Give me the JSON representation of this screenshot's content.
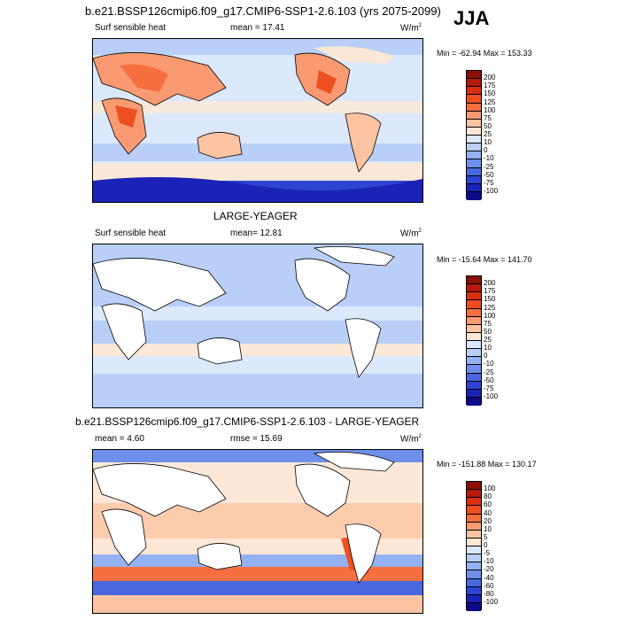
{
  "season": "JJA",
  "units": {
    "base": "W/m",
    "exp": "2"
  },
  "panels": [
    {
      "title": "b.e21.BSSP126cmip6.f09_g17.CMIP6-SSP1-2.6.103 (yrs 2075-2099)",
      "variable": "Surf sensible heat",
      "mean_label": "mean =  17.41",
      "minmax_label": "Min = -62.94 Max = 153.33"
    },
    {
      "title": "LARGE-YEAGER",
      "variable": "Surf sensible heat",
      "mean_label": "mean=  12.81",
      "minmax_label": "Min = -15.64 Max = 141.70"
    },
    {
      "title": "b.e21.BSSP126cmip6.f09_g17.CMIP6-SSP1-2.6.103 - LARGE-YEAGER",
      "mean_label": "mean =   4.60",
      "rmse_label": "rmse =  15.69",
      "minmax_label": "Min = -151.88 Max = 130.17"
    }
  ],
  "chart_data": [
    {
      "type": "heatmap",
      "title": "b.e21.BSSP126cmip6.f09_g17.CMIP6-SSP1-2.6.103 (yrs 2075-2099)",
      "variable": "Surf sensible heat",
      "units": "W/m2",
      "mean": 17.41,
      "min": -62.94,
      "max": 153.33,
      "colorbar_levels": [
        200,
        175,
        150,
        125,
        100,
        75,
        50,
        25,
        10,
        0,
        -10,
        -25,
        -50,
        -75,
        -100
      ],
      "colorbar_colors": [
        "#8c1006",
        "#b51a0a",
        "#d9300f",
        "#ee4f20",
        "#f66f3f",
        "#f99a72",
        "#fcc4a2",
        "#fde8d7",
        "#dce8fb",
        "#b9cff7",
        "#94b2f1",
        "#6e8fea",
        "#4968e0",
        "#2d44d3",
        "#1b22b8",
        "#0d0a8a"
      ]
    },
    {
      "type": "heatmap",
      "title": "LARGE-YEAGER",
      "variable": "Surf sensible heat",
      "units": "W/m2",
      "mean": 12.81,
      "min": -15.64,
      "max": 141.7,
      "colorbar_levels": [
        200,
        175,
        150,
        125,
        100,
        75,
        50,
        25,
        10,
        0,
        -10,
        -25,
        -50,
        -75,
        -100
      ],
      "colorbar_colors": [
        "#8c1006",
        "#b51a0a",
        "#d9300f",
        "#ee4f20",
        "#f66f3f",
        "#f99a72",
        "#fcc4a2",
        "#fde8d7",
        "#dce8fb",
        "#b9cff7",
        "#94b2f1",
        "#6e8fea",
        "#4968e0",
        "#2d44d3",
        "#1b22b8",
        "#0d0a8a"
      ]
    },
    {
      "type": "heatmap",
      "title": "b.e21.BSSP126cmip6.f09_g17.CMIP6-SSP1-2.6.103 - LARGE-YEAGER",
      "units": "W/m2",
      "mean": 4.6,
      "rmse": 15.69,
      "min": -151.88,
      "max": 130.17,
      "colorbar_levels": [
        100,
        80,
        60,
        40,
        20,
        10,
        5,
        0,
        -5,
        -10,
        -20,
        -40,
        -60,
        -80,
        -100
      ],
      "colorbar_colors": [
        "#8c1006",
        "#b51a0a",
        "#d9300f",
        "#ee4f20",
        "#f66f3f",
        "#f99a72",
        "#fcc4a2",
        "#fde8d7",
        "#dce8fb",
        "#b9cff7",
        "#94b2f1",
        "#6e8fea",
        "#4968e0",
        "#2d44d3",
        "#1b22b8",
        "#0d0a8a"
      ]
    }
  ]
}
